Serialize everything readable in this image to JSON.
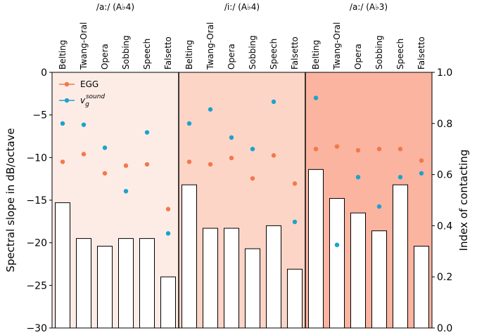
{
  "chart_data": {
    "type": "bar",
    "groups": [
      {
        "label": "/a:/ (A♭4)",
        "background": "#fdece6",
        "categories": [
          "Belting",
          "Twang-Oral",
          "Opera",
          "Sobbing",
          "Speech",
          "Falsetto"
        ],
        "bars_spectral_slope": [
          -15.3,
          -19.5,
          -20.4,
          -19.5,
          -19.5,
          -24.0
        ],
        "egg_index": [
          0.65,
          0.68,
          0.605,
          0.635,
          0.64,
          0.465
        ],
        "vg_index": [
          0.8,
          0.795,
          0.705,
          0.535,
          0.765,
          0.37
        ]
      },
      {
        "label": "/i:/ (A♭4)",
        "background": "#fcd5c7",
        "categories": [
          "Belting",
          "Twang-Oral",
          "Opera",
          "Sobbing",
          "Speech",
          "Falsetto"
        ],
        "bars_spectral_slope": [
          -13.2,
          -18.3,
          -18.3,
          -20.7,
          -18.0,
          -23.1
        ],
        "egg_index": [
          0.65,
          0.64,
          0.665,
          0.585,
          0.675,
          0.565
        ],
        "vg_index": [
          0.8,
          0.855,
          0.745,
          0.7,
          0.885,
          0.415
        ]
      },
      {
        "label": "/a:/ (A♭3)",
        "background": "#fab4a0",
        "categories": [
          "Belting",
          "Twang-Oral",
          "Opera",
          "Sobbing",
          "Speech",
          "Falsetto"
        ],
        "bars_spectral_slope": [
          -11.4,
          -14.8,
          -16.5,
          -18.6,
          -13.2,
          -20.4
        ],
        "egg_index": [
          0.7,
          0.71,
          0.695,
          0.7,
          0.7,
          0.655
        ],
        "vg_index": [
          0.9,
          0.325,
          0.59,
          0.475,
          0.59,
          0.605
        ]
      }
    ],
    "ylabel_left": "Spectral slope in dB/octave",
    "ylabel_right": "Index of contacting",
    "ylim_left": [
      -30,
      0
    ],
    "ylim_right": [
      0.0,
      1.0
    ],
    "yticks_left": [
      "0",
      "−5",
      "−10",
      "−15",
      "−20",
      "−25",
      "−30"
    ],
    "yticks_right": [
      "1.0",
      "0.8",
      "0.6",
      "0.4",
      "0.2",
      "0.0"
    ],
    "legend": [
      {
        "label": "EGG",
        "color": "#f2784b"
      },
      {
        "label": "v_g^sound",
        "base": "v",
        "sub": "g",
        "sup": "sound",
        "color": "#1ba3cc"
      }
    ],
    "legend_position": "top-left"
  }
}
